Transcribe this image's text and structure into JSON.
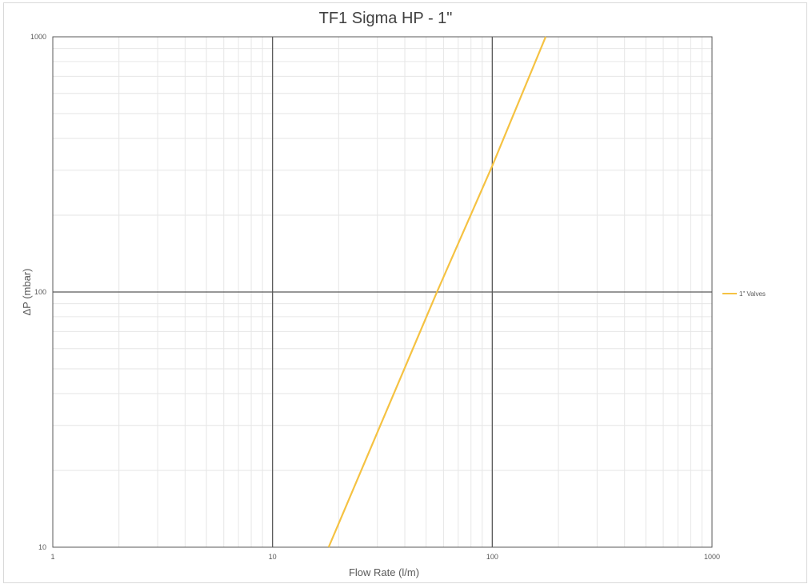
{
  "chart_data": {
    "type": "line",
    "title": "TF1 Sigma HP - 1\"",
    "xlabel": "Flow Rate (l/m)",
    "ylabel": "ΔP (mbar)",
    "x_scale": "log",
    "y_scale": "log",
    "xlim": [
      1,
      1000
    ],
    "ylim": [
      10,
      1000
    ],
    "x_ticks": [
      "1",
      "10",
      "100",
      "1000"
    ],
    "y_ticks": [
      "10",
      "100",
      "1000"
    ],
    "grid": true,
    "legend_position": "right",
    "series": [
      {
        "name": "1\" Valves",
        "color": "#f5c242",
        "x": [
          18,
          56,
          100,
          175
        ],
        "y": [
          10,
          100,
          312,
          1000
        ]
      }
    ]
  }
}
